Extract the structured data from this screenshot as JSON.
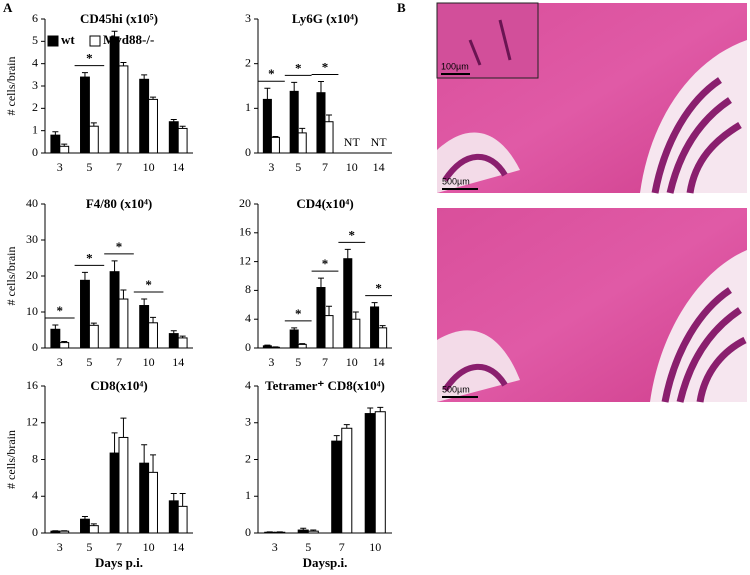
{
  "panel_labels": {
    "a": "A",
    "b": "B"
  },
  "images": [
    {
      "scale": "500µm",
      "inset_scale": "100µm"
    },
    {
      "scale": "500µm"
    }
  ],
  "chart_data": [
    {
      "type": "bar",
      "title": "CD45hi (x10⁵)",
      "ylabel": "# cells/brain",
      "categories": [
        "3",
        "5",
        "7",
        "10",
        "14"
      ],
      "ylim": [
        0,
        6
      ],
      "yticks": [
        0,
        1,
        2,
        3,
        4,
        5,
        6
      ],
      "series": [
        {
          "name": "wt",
          "color": "#000000",
          "values": [
            0.8,
            3.4,
            5.2,
            3.3,
            1.4
          ],
          "errors": [
            0.15,
            0.2,
            0.25,
            0.2,
            0.1
          ]
        },
        {
          "name": "Myd88-/-",
          "color": "#ffffff",
          "values": [
            0.3,
            1.2,
            3.9,
            2.4,
            1.1
          ],
          "errors": [
            0.1,
            0.15,
            0.15,
            0.1,
            0.1
          ]
        }
      ],
      "annotations": [
        {
          "text": "*",
          "category": "5"
        }
      ]
    },
    {
      "type": "bar",
      "title": "Ly6G (x10⁴)",
      "categories": [
        "3",
        "5",
        "7",
        "10",
        "14"
      ],
      "ylim": [
        0,
        3
      ],
      "yticks": [
        0,
        1,
        2,
        3
      ],
      "series": [
        {
          "color": "#000000",
          "values": [
            1.2,
            1.38,
            1.35,
            null,
            null
          ],
          "errors": [
            0.25,
            0.2,
            0.25,
            null,
            null
          ]
        },
        {
          "color": "#ffffff",
          "values": [
            0.35,
            0.45,
            0.7,
            null,
            null
          ],
          "errors": [
            0.02,
            0.1,
            0.15,
            null,
            null
          ]
        }
      ],
      "annotations": [
        {
          "text": "*",
          "category": "3"
        },
        {
          "text": "*",
          "category": "5"
        },
        {
          "text": "*",
          "category": "7"
        }
      ],
      "notes": [
        {
          "text": "NT",
          "category": "10"
        },
        {
          "text": "NT",
          "category": "14"
        }
      ]
    },
    {
      "type": "bar",
      "title": "F4/80 (x10⁴)",
      "ylabel": "# cells/brain",
      "categories": [
        "3",
        "5",
        "7",
        "10",
        "14"
      ],
      "ylim": [
        0,
        40
      ],
      "yticks": [
        0,
        10,
        20,
        30,
        40
      ],
      "series": [
        {
          "color": "#000000",
          "values": [
            5.2,
            18.8,
            21.2,
            11.8,
            4.0
          ],
          "errors": [
            1.2,
            2.2,
            3.0,
            1.8,
            0.8
          ]
        },
        {
          "color": "#ffffff",
          "values": [
            1.5,
            6.3,
            13.6,
            7.0,
            2.8
          ],
          "errors": [
            0.3,
            0.6,
            2.5,
            1.5,
            0.5
          ]
        }
      ],
      "annotations": [
        {
          "text": "*",
          "category": "3"
        },
        {
          "text": "*",
          "category": "5"
        },
        {
          "text": "*",
          "category": "7"
        },
        {
          "text": "*",
          "category": "10"
        }
      ]
    },
    {
      "type": "bar",
      "title": "CD4(x10⁴)",
      "categories": [
        "3",
        "5",
        "7",
        "10",
        "14"
      ],
      "ylim": [
        0,
        20
      ],
      "yticks": [
        0,
        4,
        8,
        12,
        16,
        20
      ],
      "series": [
        {
          "color": "#000000",
          "values": [
            0.3,
            2.5,
            8.4,
            12.4,
            5.7
          ],
          "errors": [
            0.1,
            0.3,
            1.3,
            1.3,
            0.6
          ]
        },
        {
          "color": "#ffffff",
          "values": [
            0.1,
            0.5,
            4.5,
            4.0,
            2.8
          ],
          "errors": [
            0.05,
            0.1,
            1.3,
            1.0,
            0.3
          ]
        }
      ],
      "annotations": [
        {
          "text": "*",
          "category": "5"
        },
        {
          "text": "*",
          "category": "7"
        },
        {
          "text": "*",
          "category": "10"
        },
        {
          "text": "*",
          "category": "14"
        }
      ]
    },
    {
      "type": "bar",
      "title": "CD8(x10⁴)",
      "ylabel": "# cells/brain",
      "xlabel": "Days p.i.",
      "categories": [
        "3",
        "5",
        "7",
        "10",
        "14"
      ],
      "ylim": [
        0,
        16
      ],
      "yticks": [
        0,
        4,
        8,
        12,
        16
      ],
      "series": [
        {
          "color": "#000000",
          "values": [
            0.2,
            1.5,
            8.7,
            7.6,
            3.5
          ],
          "errors": [
            0.05,
            0.3,
            2.2,
            2.0,
            0.8
          ]
        },
        {
          "color": "#ffffff",
          "values": [
            0.2,
            0.8,
            10.4,
            6.6,
            2.9
          ],
          "errors": [
            0.05,
            0.2,
            2.1,
            1.9,
            1.4
          ]
        }
      ]
    },
    {
      "type": "bar",
      "title": "Tetramer⁺ CD8(x10⁴)",
      "xlabel": "Daysp.i.",
      "categories": [
        "3",
        "5",
        "7",
        "10"
      ],
      "ylim": [
        0,
        4
      ],
      "yticks": [
        0,
        1,
        2,
        3,
        4
      ],
      "series": [
        {
          "color": "#000000",
          "values": [
            0.02,
            0.08,
            2.5,
            3.25
          ],
          "errors": [
            0.01,
            0.05,
            0.15,
            0.15
          ]
        },
        {
          "color": "#ffffff",
          "values": [
            0.02,
            0.05,
            2.85,
            3.3
          ],
          "errors": [
            0.01,
            0.03,
            0.1,
            0.12
          ]
        }
      ]
    }
  ]
}
